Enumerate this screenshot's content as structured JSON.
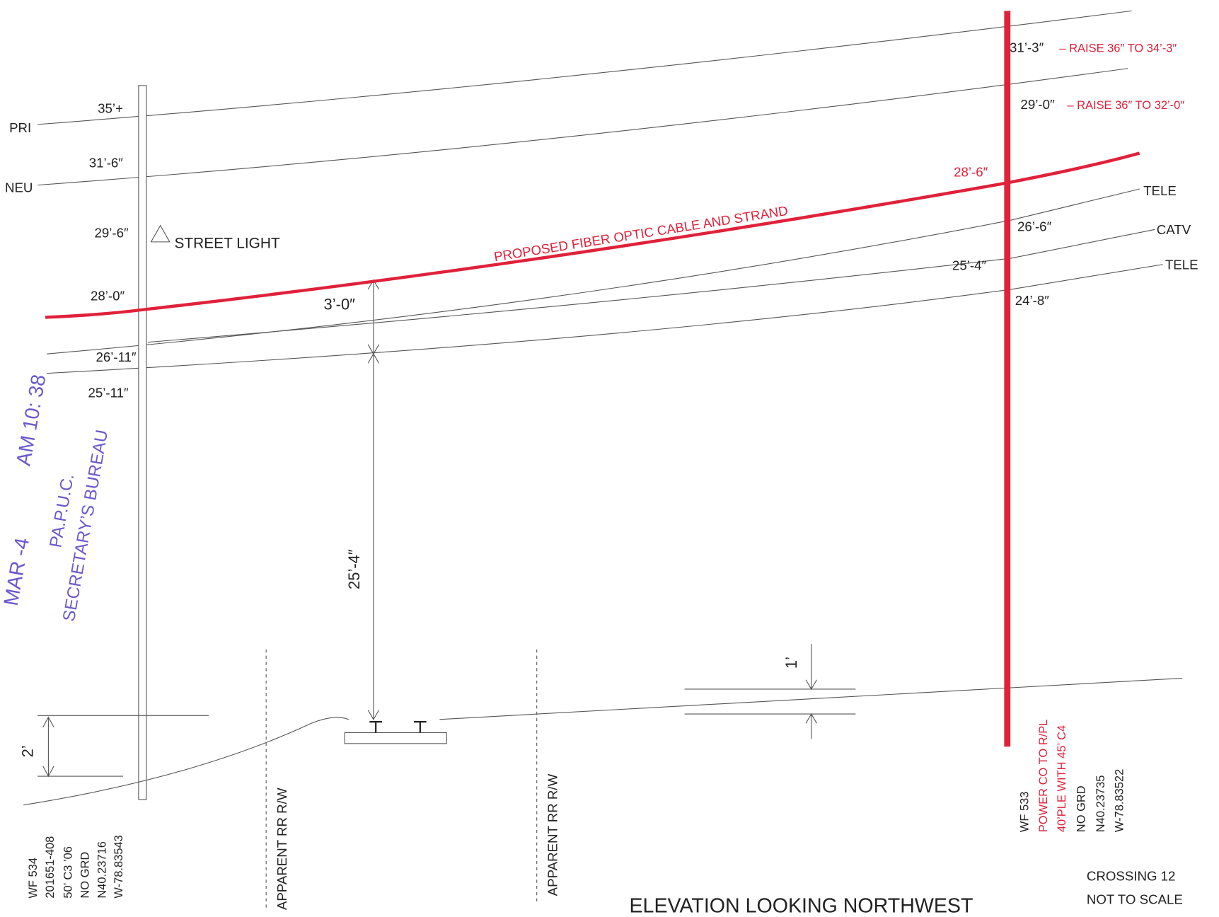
{
  "wires": {
    "pri": "PRI",
    "neu": "NEU",
    "tele_upper": "TELE",
    "catv": "CATV",
    "tele_lower": "TELE"
  },
  "left_pole": {
    "heights": [
      "35’+",
      "31’-6″",
      "29’-6″",
      "28’-0″",
      "26’-11″",
      "25’-11″"
    ],
    "street_light": "STREET LIGHT",
    "info": [
      "WF 534",
      "201651-408",
      "50’ C3 ’06",
      "NO GRD",
      "N40.23716",
      "W-78.83543"
    ]
  },
  "right_pole": {
    "heights": [
      "31’-3″",
      "29’-0″",
      "28’-6″",
      "26’-6″",
      "25’-4″",
      "24’-8″"
    ],
    "raises": [
      "– RAISE 36″ TO 34’-3″",
      "– RAISE 36″ TO 32’-0″"
    ],
    "info": [
      "WF 533",
      "POWER CO TO R/PL",
      "40’PLE WITH 45’ C4",
      "NO GRD",
      "N40.23735",
      "W-78.83522"
    ]
  },
  "proposed": "PROPOSED FIBER OPTIC CABLE AND STRAND",
  "clearances": {
    "separation": "3’-0″",
    "ground": "25’-4″",
    "bank": "2’",
    "rail": "1’"
  },
  "rr_labels": [
    "APPARENT RR R/W",
    "APPARENT RR R/W"
  ],
  "title": "ELEVATION LOOKING NORTHWEST",
  "notes": [
    "CROSSING 12",
    "NOT TO SCALE"
  ],
  "stamp": [
    "PA.P.U.C.",
    "SECRETARY’S BUREAU",
    "AM 10: 38",
    "MAR -4"
  ]
}
